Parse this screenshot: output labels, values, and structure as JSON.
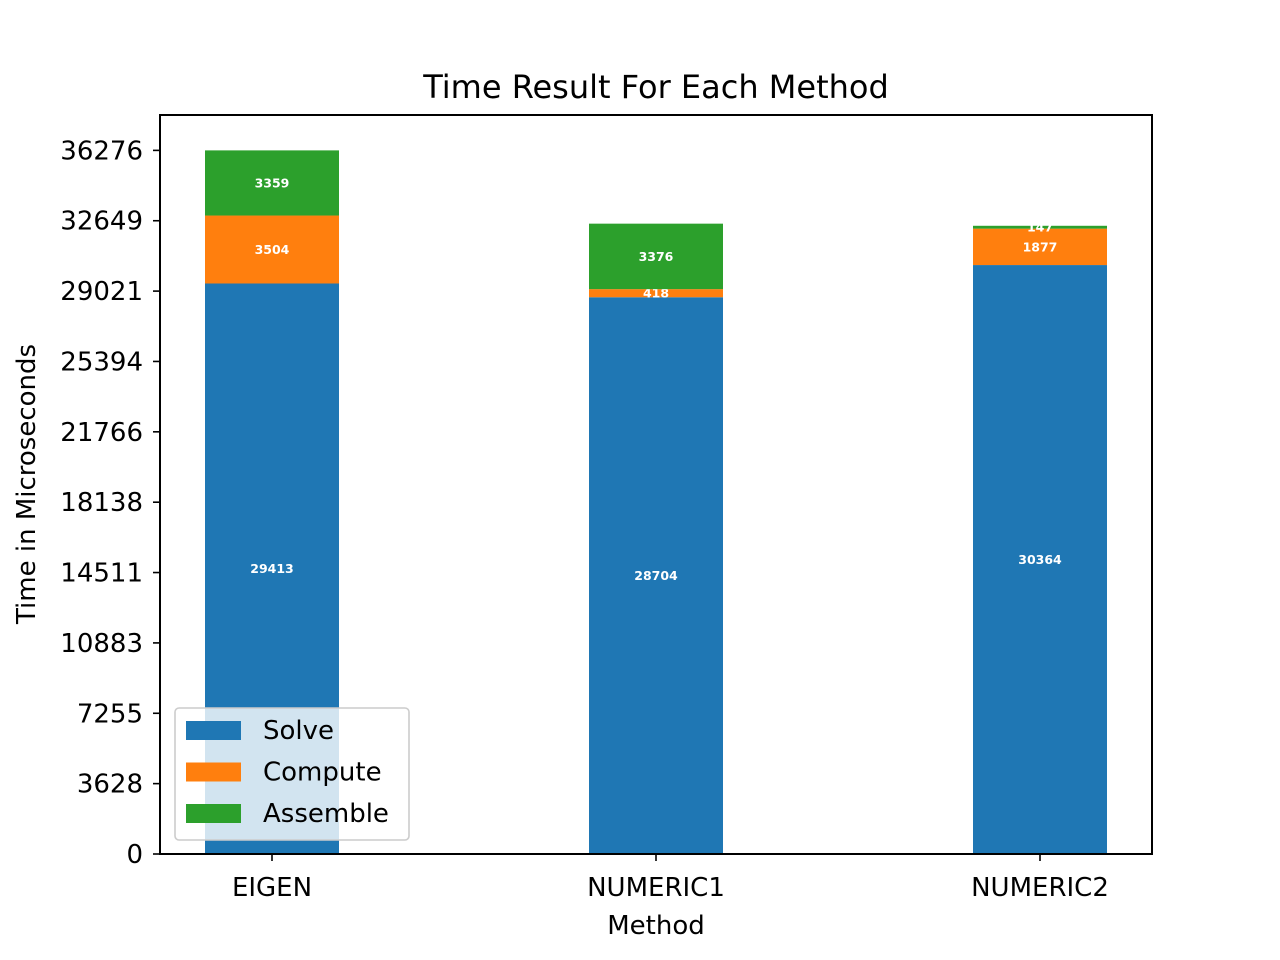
{
  "chart_data": {
    "type": "bar",
    "stacked": true,
    "title": "Time Result For Each Method",
    "xlabel": "Method",
    "ylabel": "Time in Microseconds",
    "categories": [
      "EIGEN",
      "NUMERIC1",
      "NUMERIC2"
    ],
    "series": [
      {
        "name": "Solve",
        "color": "#1f77b4",
        "values": [
          29413,
          28704,
          30364
        ],
        "labels": [
          "29413",
          "28704",
          "30364"
        ]
      },
      {
        "name": "Compute",
        "color": "#ff7f0e",
        "values": [
          3504,
          418,
          1877
        ],
        "labels": [
          "3504",
          "418",
          "1877"
        ]
      },
      {
        "name": "Assemble",
        "color": "#2ca02c",
        "values": [
          3359,
          3376,
          147
        ],
        "labels": [
          "3359",
          "3376",
          "147"
        ]
      }
    ],
    "yticks": [
      0,
      3628,
      7255,
      10883,
      14511,
      18138,
      21766,
      25394,
      29021,
      32649,
      36276
    ],
    "ytick_labels": [
      "0",
      "3628",
      "7255",
      "10883",
      "14511",
      "18138",
      "21766",
      "25394",
      "29021",
      "32649",
      "36276"
    ],
    "ylim": [
      0,
      38100
    ],
    "grid": false,
    "legend_position": "lower-left"
  }
}
